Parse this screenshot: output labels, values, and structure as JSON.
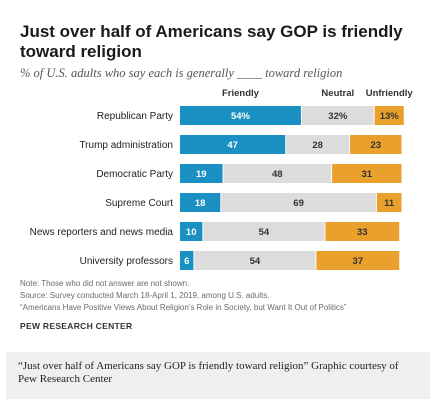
{
  "chart_data": {
    "type": "bar",
    "stacked": true,
    "title": "Just over half of Americans say GOP is friendly toward religion",
    "subtitle": "% of U.S. adults who say each is generally ____ toward religion",
    "categories": [
      "Republican Party",
      "Trump administration",
      "Democratic Party",
      "Supreme Court",
      "News reporters and news media",
      "University professors"
    ],
    "series": [
      {
        "name": "Friendly",
        "values": [
          54,
          47,
          19,
          18,
          10,
          6
        ],
        "labels": [
          "54%",
          "47",
          "19",
          "18",
          "10",
          "6"
        ],
        "color": "#1a8fc1"
      },
      {
        "name": "Neutral",
        "values": [
          32,
          28,
          48,
          69,
          54,
          54
        ],
        "labels": [
          "32%",
          "28",
          "48",
          "69",
          "54",
          "54"
        ],
        "color": "#dcdcdc"
      },
      {
        "name": "Unfriendly",
        "values": [
          13,
          23,
          31,
          11,
          33,
          37
        ],
        "labels": [
          "13%",
          "23",
          "31",
          "11",
          "33",
          "37"
        ],
        "color": "#eaa02c"
      }
    ],
    "xlim": [
      0,
      100
    ],
    "grid": false,
    "legend_position": "top"
  },
  "notes": {
    "note": "Note: Those who did not answer are not shown.",
    "source": "Source: Survey conducted March 18-April 1, 2019, among U.S. adults.",
    "report": "“Americans Have Positive Views About Religion’s Role in Society, but Want It Out of Politics”"
  },
  "brand": "PEW RESEARCH CENTER",
  "caption": "“Just over half of Americans say GOP is friendly toward religion” Graphic courtesy of Pew Research Center",
  "colors": {
    "label_on_dark": "#ffffff",
    "label_on_light": "#333333"
  }
}
